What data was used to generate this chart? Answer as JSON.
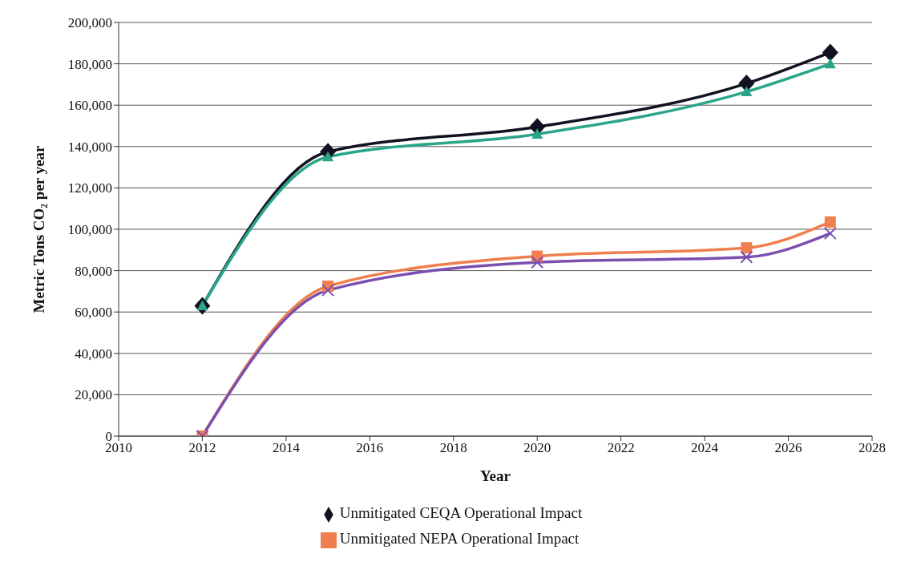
{
  "chart_data": {
    "type": "line",
    "xlabel": "Year",
    "ylabel": "Metric Tons CO₂ per year",
    "x": [
      2012,
      2015,
      2020,
      2025,
      2027
    ],
    "series": [
      {
        "name": "Unmitigated CEQA Operational Impact",
        "color": "#111122",
        "marker": "diamond",
        "values": [
          63000,
          137500,
          149500,
          170500,
          185500
        ]
      },
      {
        "color": "#2aa58a",
        "marker": "triangle",
        "values": [
          63000,
          135000,
          146000,
          166500,
          180000
        ]
      },
      {
        "name": "Unmitigated NEPA Operational Impact",
        "color": "#f07f4f",
        "marker": "square",
        "values": [
          0,
          72500,
          87000,
          91000,
          103500
        ]
      },
      {
        "color": "#7b4fb0",
        "marker": "cross",
        "values": [
          0,
          70500,
          84000,
          86500,
          98000
        ]
      }
    ],
    "xlim": [
      2010,
      2028
    ],
    "xticks": [
      2010,
      2012,
      2014,
      2016,
      2018,
      2020,
      2022,
      2024,
      2026,
      2028
    ],
    "ylim": [
      0,
      200000
    ],
    "yticks": [
      0,
      {
        "value": 20000,
        "label": "20,000"
      },
      {
        "value": 40000,
        "label": "40,000"
      },
      {
        "value": 60000,
        "label": "60,000"
      },
      {
        "value": 80000,
        "label": "80,000"
      },
      {
        "value": 100000,
        "label": "100,000"
      },
      {
        "value": 120000,
        "label": "120,000"
      },
      {
        "value": 140000,
        "label": "140,000"
      },
      {
        "value": 160000,
        "label": "160,000"
      },
      {
        "value": 180000,
        "label": "180,000"
      },
      {
        "value": 200000,
        "label": "200,000"
      }
    ],
    "grid": "y",
    "legend": "bottom",
    "line_style": "solid"
  }
}
